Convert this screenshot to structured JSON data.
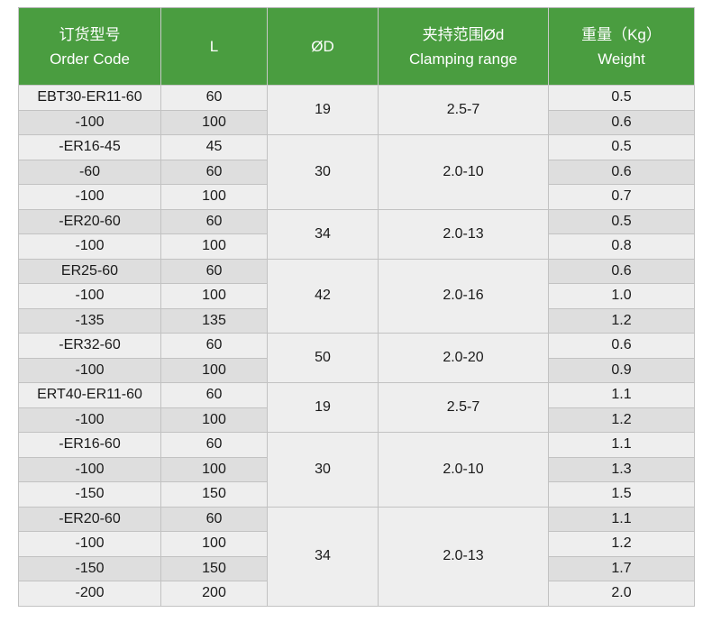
{
  "table": {
    "headers": [
      {
        "zh": "订货型号",
        "en": "Order Code"
      },
      {
        "zh": "L",
        "en": ""
      },
      {
        "zh": "ØD",
        "en": ""
      },
      {
        "zh": "夹持范围Ød",
        "en": "Clamping range"
      },
      {
        "zh": "重量（Kg）",
        "en": "Weight"
      }
    ],
    "groups": [
      {
        "od": "19",
        "clamping": "2.5-7",
        "rows": [
          {
            "code": "EBT30-ER11-60",
            "l": "60",
            "weight": "0.5"
          },
          {
            "code": "-100",
            "l": "100",
            "weight": "0.6"
          }
        ]
      },
      {
        "od": "30",
        "clamping": "2.0-10",
        "rows": [
          {
            "code": "-ER16-45",
            "l": "45",
            "weight": "0.5"
          },
          {
            "code": "-60",
            "l": "60",
            "weight": "0.6"
          },
          {
            "code": "-100",
            "l": "100",
            "weight": "0.7"
          }
        ]
      },
      {
        "od": "34",
        "clamping": "2.0-13",
        "rows": [
          {
            "code": "-ER20-60",
            "l": "60",
            "weight": "0.5"
          },
          {
            "code": "-100",
            "l": "100",
            "weight": "0.8"
          }
        ]
      },
      {
        "od": "42",
        "clamping": "2.0-16",
        "rows": [
          {
            "code": "ER25-60",
            "l": "60",
            "weight": "0.6"
          },
          {
            "code": "-100",
            "l": "100",
            "weight": "1.0"
          },
          {
            "code": "-135",
            "l": "135",
            "weight": "1.2"
          }
        ]
      },
      {
        "od": "50",
        "clamping": "2.0-20",
        "rows": [
          {
            "code": "-ER32-60",
            "l": "60",
            "weight": "0.6"
          },
          {
            "code": "-100",
            "l": "100",
            "weight": "0.9"
          }
        ]
      },
      {
        "od": "19",
        "clamping": "2.5-7",
        "rows": [
          {
            "code": "ERT40-ER11-60",
            "l": "60",
            "weight": "1.1"
          },
          {
            "code": "-100",
            "l": "100",
            "weight": "1.2"
          }
        ]
      },
      {
        "od": "30",
        "clamping": "2.0-10",
        "rows": [
          {
            "code": "-ER16-60",
            "l": "60",
            "weight": "1.1"
          },
          {
            "code": "-100",
            "l": "100",
            "weight": "1.3"
          },
          {
            "code": "-150",
            "l": "150",
            "weight": "1.5"
          }
        ]
      },
      {
        "od": "34",
        "clamping": "2.0-13",
        "rows": [
          {
            "code": "-ER20-60",
            "l": "60",
            "weight": "1.1"
          },
          {
            "code": "-100",
            "l": "100",
            "weight": "1.2"
          },
          {
            "code": "-150",
            "l": "150",
            "weight": "1.7"
          },
          {
            "code": "-200",
            "l": "200",
            "weight": "2.0"
          }
        ]
      }
    ],
    "colors": {
      "header_bg": "#4a9d40",
      "header_text": "#ffffff",
      "row_light": "#eeeeee",
      "row_dark": "#dedede",
      "border_inner": "#c2c2c2",
      "border_outer": "#b3b3b3",
      "text": "#1a1a1a"
    }
  }
}
